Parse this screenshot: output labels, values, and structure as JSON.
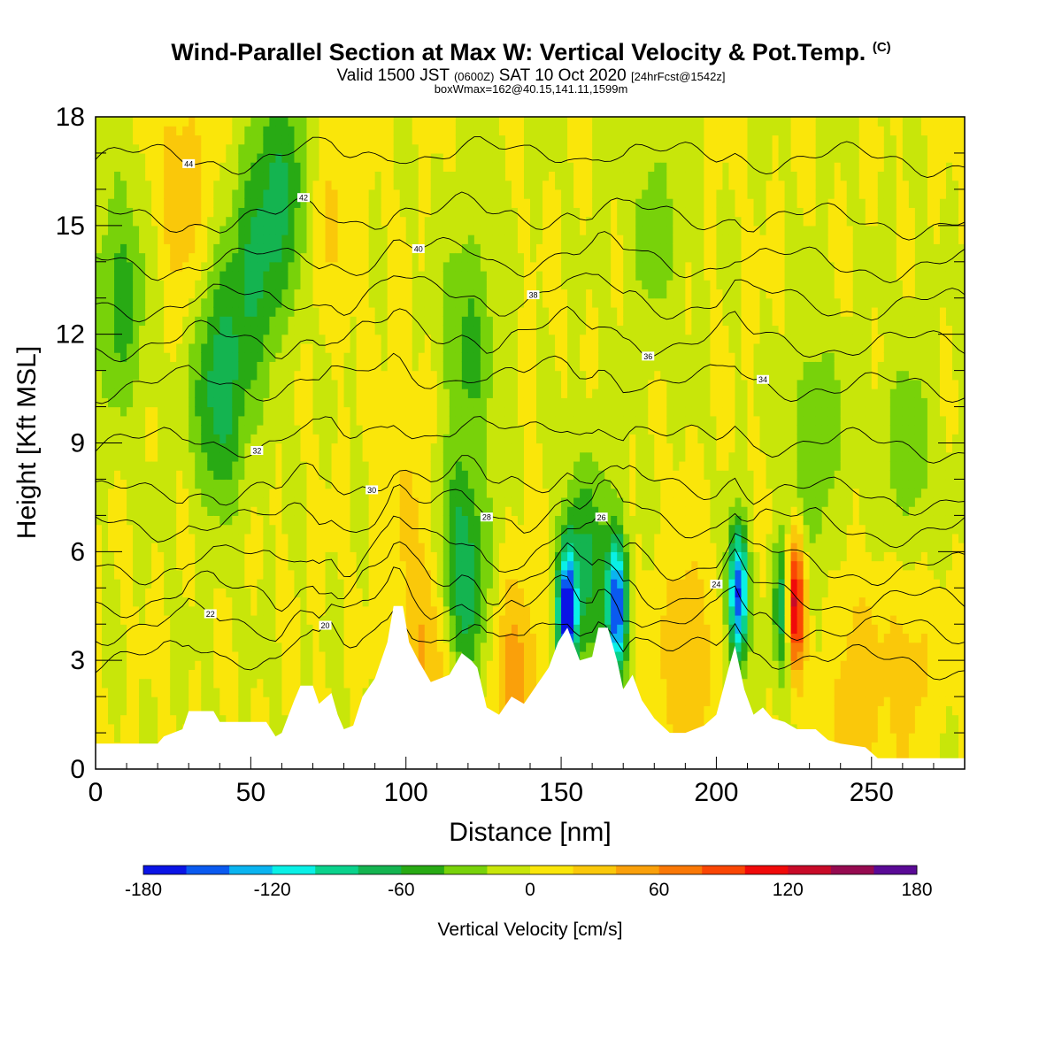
{
  "header": {
    "title": "Wind-Parallel Section at Max W: Vertical Velocity & Pot.Temp.",
    "copyright": "(C)",
    "valid_prefix": "Valid 1500 JST",
    "valid_utc": "(0600Z)",
    "valid_date": "SAT 10 Oct 2020",
    "forecast": "[24hrFcst@1542z]",
    "box_info": "boxWmax=162@40.15,141.11,1599m"
  },
  "chart_data": {
    "type": "heatmap",
    "xlabel": "Distance [nm]",
    "ylabel": "Height [Kft MSL]",
    "xlim": [
      0,
      280
    ],
    "ylim": [
      0,
      18
    ],
    "x_ticks": [
      "0",
      "50",
      "100",
      "150",
      "200",
      "250"
    ],
    "y_ticks": [
      "0",
      "3",
      "6",
      "9",
      "12",
      "15",
      "18"
    ],
    "colorbar": {
      "label": "Vertical Velocity [cm/s]",
      "range": [
        -180,
        180
      ],
      "tick_labels": [
        "-180",
        "-120",
        "-60",
        "0",
        "60",
        "120",
        "180"
      ],
      "colors": [
        "#0a14e6",
        "#0a5af0",
        "#0ab4f0",
        "#0af0e6",
        "#0ad28c",
        "#14b450",
        "#28aa14",
        "#78d20a",
        "#c8e60a",
        "#fae60a",
        "#fac80a",
        "#faa00a",
        "#fa7806",
        "#fa4604",
        "#f00a0a",
        "#c80a28",
        "#960a50",
        "#5a0a96"
      ]
    },
    "theta_isolines": [
      {
        "label": "44",
        "level": 16.8
      },
      {
        "label": "42",
        "level": 15.1
      },
      {
        "label": "40",
        "level": 13.9
      },
      {
        "label": "38",
        "level": 12.8
      },
      {
        "label": "36",
        "level": 11.7
      },
      {
        "label": "34",
        "level": 10.5
      },
      {
        "label": "32",
        "level": 8.9
      },
      {
        "label": "30",
        "level": 7.5
      },
      {
        "label": "28",
        "level": 6.6
      },
      {
        "label": "26",
        "level": 5.5
      },
      {
        "label": "24",
        "level": 4.6
      },
      {
        "label": "22",
        "level": 3.8
      },
      {
        "label": "20",
        "level": 2.9
      }
    ],
    "terrain_kft": [
      [
        0,
        0.7
      ],
      [
        20,
        0.7
      ],
      [
        22,
        0.9
      ],
      [
        28,
        1.1
      ],
      [
        30,
        1.6
      ],
      [
        38,
        1.6
      ],
      [
        40,
        1.3
      ],
      [
        45,
        1.3
      ],
      [
        55,
        1.3
      ],
      [
        58,
        0.9
      ],
      [
        60,
        1.0
      ],
      [
        64,
        1.9
      ],
      [
        66,
        2.3
      ],
      [
        70,
        2.3
      ],
      [
        72,
        1.8
      ],
      [
        76,
        2.1
      ],
      [
        78,
        1.5
      ],
      [
        80,
        1.1
      ],
      [
        83,
        1.2
      ],
      [
        86,
        2.0
      ],
      [
        90,
        2.5
      ],
      [
        94,
        3.5
      ],
      [
        96,
        4.5
      ],
      [
        99,
        4.5
      ],
      [
        101,
        3.5
      ],
      [
        104,
        3.0
      ],
      [
        108,
        2.4
      ],
      [
        114,
        2.6
      ],
      [
        118,
        3.2
      ],
      [
        121,
        3.0
      ],
      [
        123,
        2.8
      ],
      [
        126,
        1.7
      ],
      [
        130,
        1.5
      ],
      [
        134,
        2.0
      ],
      [
        138,
        1.8
      ],
      [
        142,
        2.3
      ],
      [
        146,
        2.8
      ],
      [
        149,
        3.5
      ],
      [
        152,
        3.9
      ],
      [
        156,
        3.0
      ],
      [
        160,
        3.1
      ],
      [
        162,
        3.9
      ],
      [
        165,
        3.9
      ],
      [
        168,
        3.0
      ],
      [
        170,
        2.2
      ],
      [
        173,
        2.6
      ],
      [
        176,
        1.9
      ],
      [
        180,
        1.4
      ],
      [
        185,
        1.0
      ],
      [
        190,
        1.0
      ],
      [
        196,
        1.2
      ],
      [
        200,
        1.5
      ],
      [
        204,
        2.8
      ],
      [
        206,
        3.4
      ],
      [
        209,
        2.2
      ],
      [
        212,
        1.5
      ],
      [
        215,
        1.7
      ],
      [
        218,
        1.4
      ],
      [
        222,
        1.3
      ],
      [
        226,
        1.1
      ],
      [
        232,
        1.1
      ],
      [
        236,
        0.8
      ],
      [
        240,
        0.7
      ],
      [
        248,
        0.6
      ],
      [
        252,
        0.3
      ],
      [
        260,
        0.3
      ],
      [
        270,
        0.3
      ],
      [
        280,
        0.3
      ]
    ],
    "w_features": [
      {
        "x": 8,
        "z": 13.0,
        "w": -50
      },
      {
        "x": 40,
        "z": 10.5,
        "w": -75
      },
      {
        "x": 52,
        "z": 14.0,
        "w": -60
      },
      {
        "x": 62,
        "z": 16.5,
        "w": -55
      },
      {
        "x": 118,
        "z": 5.3,
        "w": -85
      },
      {
        "x": 120,
        "z": 12.0,
        "w": -45
      },
      {
        "x": 152,
        "z": 4.3,
        "w": -170
      },
      {
        "x": 159,
        "z": 5.5,
        "w": -60
      },
      {
        "x": 168,
        "z": 4.5,
        "w": -150
      },
      {
        "x": 207,
        "z": 4.8,
        "w": -165
      },
      {
        "x": 222,
        "z": 4.5,
        "w": -110
      },
      {
        "x": 225,
        "z": 4.6,
        "w": 162
      },
      {
        "x": 108,
        "z": 3.6,
        "w": 50
      },
      {
        "x": 100,
        "z": 8.0,
        "w": 15
      },
      {
        "x": 28,
        "z": 16.0,
        "w": 35
      },
      {
        "x": 75,
        "z": 16.0,
        "w": 25
      },
      {
        "x": 135,
        "z": 2.5,
        "w": 45
      },
      {
        "x": 190,
        "z": 3.0,
        "w": 40
      },
      {
        "x": 245,
        "z": 2.0,
        "w": 35
      },
      {
        "x": 262,
        "z": 3.0,
        "w": 30
      },
      {
        "x": 232,
        "z": 9.0,
        "w": -40
      },
      {
        "x": 262,
        "z": 8.5,
        "w": -35
      },
      {
        "x": 180,
        "z": 15.0,
        "w": -30
      }
    ]
  }
}
